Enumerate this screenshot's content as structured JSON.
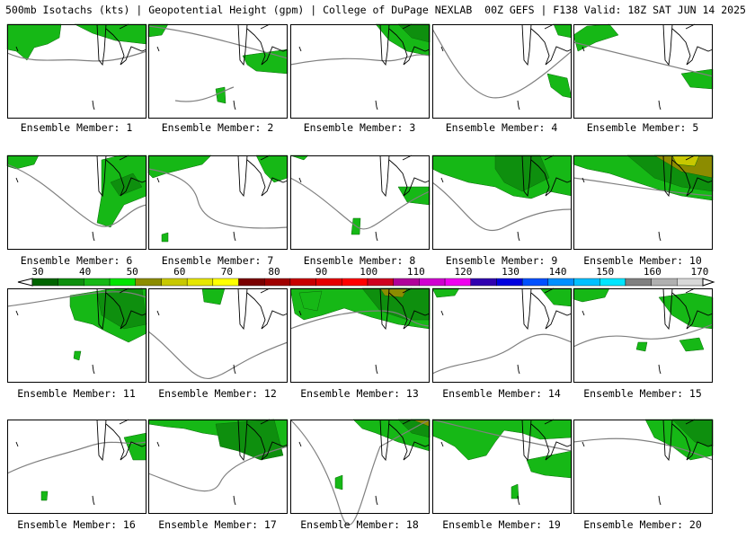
{
  "header": {
    "title": "500mb Isotachs (kts) | Geopotential Height (gpm) | College of DuPage NEXLAB",
    "run_info": "00Z GEFS | F138 Valid: 18Z SAT JUN 14 2025"
  },
  "panels": [
    {
      "label": "Ensemble Member: 1"
    },
    {
      "label": "Ensemble Member: 2"
    },
    {
      "label": "Ensemble Member: 3"
    },
    {
      "label": "Ensemble Member: 4"
    },
    {
      "label": "Ensemble Member: 5"
    },
    {
      "label": "Ensemble Member: 6"
    },
    {
      "label": "Ensemble Member: 7"
    },
    {
      "label": "Ensemble Member: 8"
    },
    {
      "label": "Ensemble Member: 9"
    },
    {
      "label": "Ensemble Member: 10"
    },
    {
      "label": "Ensemble Member: 11"
    },
    {
      "label": "Ensemble Member: 12"
    },
    {
      "label": "Ensemble Member: 13"
    },
    {
      "label": "Ensemble Member: 14"
    },
    {
      "label": "Ensemble Member: 15"
    },
    {
      "label": "Ensemble Member: 16"
    },
    {
      "label": "Ensemble Member: 17"
    },
    {
      "label": "Ensemble Member: 18"
    },
    {
      "label": "Ensemble Member: 19"
    },
    {
      "label": "Ensemble Member: 20"
    }
  ],
  "colorbar": {
    "ticks": [
      "30",
      "40",
      "50",
      "60",
      "70",
      "80",
      "90",
      "100",
      "110",
      "120",
      "130",
      "140",
      "150",
      "160",
      "170"
    ],
    "colors": [
      "#006400",
      "#0e8f0e",
      "#16b816",
      "#00e400",
      "#8c8c00",
      "#c8c800",
      "#e6e600",
      "#ffff00",
      "#7a0000",
      "#a00000",
      "#c80000",
      "#e60000",
      "#ff0000",
      "#d00020",
      "#b0009a",
      "#d000d0",
      "#f000f0",
      "#3000b0",
      "#0000e0",
      "#0050ff",
      "#0090ff",
      "#00c0ff",
      "#00e6ff",
      "#808080",
      "#b0b0b0",
      "#d8d8d8"
    ]
  }
}
